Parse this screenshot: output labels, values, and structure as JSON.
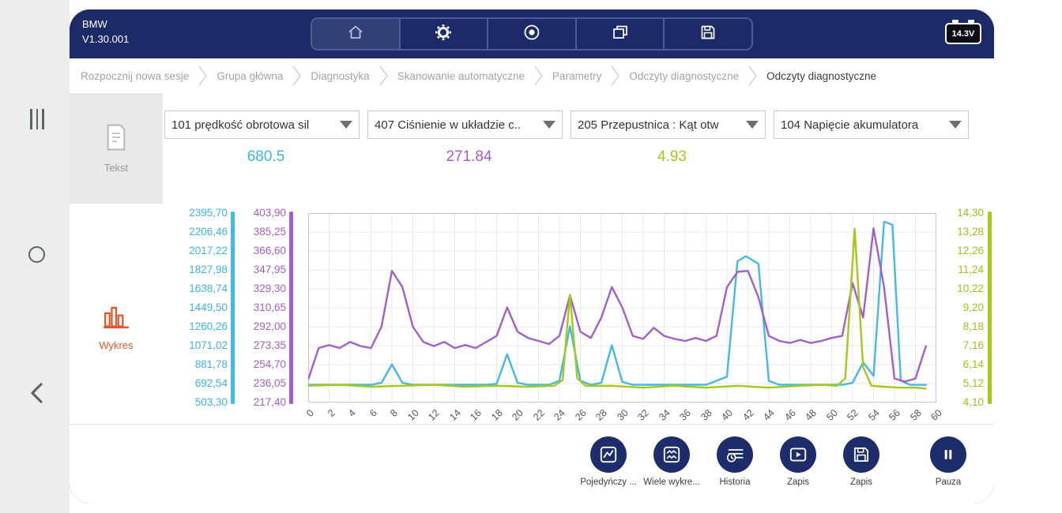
{
  "app": {
    "name": "BMW",
    "version": "V1.30.001"
  },
  "header": {
    "battery_voltage": "14.3V",
    "toolbar_icons": [
      "home-icon",
      "settings-gear-icon",
      "record-icon",
      "multi-window-icon",
      "save-icon"
    ]
  },
  "android_nav_icons": [
    "recents-icon",
    "home-circle-icon",
    "back-chevron-icon"
  ],
  "breadcrumbs": [
    "Rozpocznij nowa sesje",
    "Grupa główna",
    "Diagnostyka",
    "Skanowanie automatyczne",
    "Parametry",
    "Odczyty diagnostyczne",
    "Odczyty diagnostyczne"
  ],
  "view_tabs": {
    "text_label": "Tekst",
    "chart_label": "Wykres"
  },
  "selectors": [
    {
      "label": "101 prędkość obrotowa sil"
    },
    {
      "label": "407 Ciśnienie w układzie c.."
    },
    {
      "label": "205 Przepustnica : Kąt otw"
    },
    {
      "label": "104 Napięcie akumulatora"
    }
  ],
  "values": [
    {
      "text": "680.5",
      "color": "#3bb3e6"
    },
    {
      "text": "271.84",
      "color": "#a55cc6"
    },
    {
      "text": "4.93",
      "color": "#a3c61e"
    }
  ],
  "chart_data": {
    "type": "line",
    "x_max": 60,
    "grid_cols": 30,
    "grid_rows": 10,
    "x_tick_labels": [
      "0",
      "2",
      "4",
      "6",
      "8",
      "10",
      "12",
      "14",
      "16",
      "18",
      "20",
      "22",
      "24",
      "26",
      "28",
      "30",
      "32",
      "34",
      "36",
      "38",
      "40",
      "42",
      "44",
      "46",
      "48",
      "50",
      "52",
      "54",
      "56",
      "58",
      "60"
    ],
    "axes": {
      "left_rpm": {
        "color": "#3bb3e6",
        "min": 503.3,
        "max": 2395.7,
        "labels": [
          "2395,70",
          "2206,46",
          "2017,22",
          "1827,98",
          "1638,74",
          "1449,50",
          "1260,26",
          "1071,02",
          "881,78",
          "692,54",
          "503,30"
        ]
      },
      "left_pressure": {
        "color": "#a55cc6",
        "min": 217.4,
        "max": 403.9,
        "labels": [
          "403,90",
          "385,25",
          "366,60",
          "347,95",
          "329,30",
          "310,65",
          "292,00",
          "273,35",
          "254,70",
          "236,05",
          "217,40"
        ]
      },
      "right_voltage": {
        "color": "#a4c918",
        "min": 4.1,
        "max": 14.3,
        "labels": [
          "14,30",
          "13,28",
          "12,26",
          "11,24",
          "10,22",
          "9,20",
          "8,18",
          "7,16",
          "6,14",
          "5,12",
          "4,10"
        ]
      }
    },
    "series": [
      {
        "name": "101",
        "color": "#45b8e8",
        "axis_min": 503.3,
        "axis_max": 2395.7,
        "points": [
          [
            0,
            680
          ],
          [
            4,
            680
          ],
          [
            6,
            680
          ],
          [
            7,
            700
          ],
          [
            8,
            885
          ],
          [
            9,
            700
          ],
          [
            10,
            680
          ],
          [
            14,
            680
          ],
          [
            17,
            680
          ],
          [
            18,
            690
          ],
          [
            19,
            985
          ],
          [
            20,
            700
          ],
          [
            21,
            680
          ],
          [
            23,
            680
          ],
          [
            24,
            720
          ],
          [
            25,
            1265
          ],
          [
            26,
            720
          ],
          [
            27,
            680
          ],
          [
            28,
            700
          ],
          [
            29,
            1075
          ],
          [
            30,
            710
          ],
          [
            31,
            680
          ],
          [
            35,
            680
          ],
          [
            38,
            680
          ],
          [
            40,
            760
          ],
          [
            41,
            1915
          ],
          [
            41.8,
            1965
          ],
          [
            43,
            1890
          ],
          [
            44,
            720
          ],
          [
            45,
            680
          ],
          [
            48,
            680
          ],
          [
            51,
            680
          ],
          [
            52,
            700
          ],
          [
            53,
            905
          ],
          [
            54,
            770
          ],
          [
            55,
            2310
          ],
          [
            55.8,
            2280
          ],
          [
            56.6,
            720
          ],
          [
            57.5,
            680
          ],
          [
            59,
            680
          ]
        ]
      },
      {
        "name": "407",
        "color": "#a160c8",
        "axis_min": 217.4,
        "axis_max": 403.9,
        "points": [
          [
            0,
            240
          ],
          [
            1,
            271
          ],
          [
            2,
            274
          ],
          [
            3,
            271
          ],
          [
            4,
            277
          ],
          [
            5,
            273
          ],
          [
            6,
            271
          ],
          [
            7,
            292
          ],
          [
            8,
            347
          ],
          [
            9,
            331
          ],
          [
            10,
            292
          ],
          [
            11,
            277
          ],
          [
            12,
            273
          ],
          [
            13,
            277
          ],
          [
            14,
            271
          ],
          [
            15,
            274
          ],
          [
            16,
            271
          ],
          [
            17,
            277
          ],
          [
            18,
            283
          ],
          [
            19,
            311
          ],
          [
            20,
            287
          ],
          [
            21,
            281
          ],
          [
            22,
            278
          ],
          [
            23,
            275
          ],
          [
            24,
            283
          ],
          [
            25,
            323
          ],
          [
            26,
            287
          ],
          [
            27,
            281
          ],
          [
            28,
            301
          ],
          [
            29,
            331
          ],
          [
            30,
            311
          ],
          [
            31,
            283
          ],
          [
            32,
            280
          ],
          [
            33,
            291
          ],
          [
            34,
            283
          ],
          [
            35,
            280
          ],
          [
            36,
            278
          ],
          [
            37,
            281
          ],
          [
            38,
            278
          ],
          [
            39,
            283
          ],
          [
            40,
            331
          ],
          [
            41,
            346
          ],
          [
            42,
            347
          ],
          [
            43,
            321
          ],
          [
            44,
            283
          ],
          [
            45,
            278
          ],
          [
            46,
            276
          ],
          [
            47,
            279
          ],
          [
            48,
            276
          ],
          [
            49,
            278
          ],
          [
            50,
            281
          ],
          [
            51,
            283
          ],
          [
            52,
            335
          ],
          [
            53,
            301
          ],
          [
            54,
            389
          ],
          [
            55,
            331
          ],
          [
            56,
            241
          ],
          [
            57,
            238
          ],
          [
            58,
            241
          ],
          [
            59,
            273
          ]
        ]
      },
      {
        "name": "205/104",
        "color": "#a4c918",
        "axis_min": 4.1,
        "axis_max": 14.3,
        "points": [
          [
            0,
            5.0
          ],
          [
            3,
            5.05
          ],
          [
            6,
            4.95
          ],
          [
            9,
            5.0
          ],
          [
            12,
            5.05
          ],
          [
            15,
            4.95
          ],
          [
            18,
            5.0
          ],
          [
            21,
            4.95
          ],
          [
            23.5,
            5.0
          ],
          [
            24.3,
            5.3
          ],
          [
            25,
            9.9
          ],
          [
            25.7,
            5.4
          ],
          [
            26.5,
            5.0
          ],
          [
            29,
            5.0
          ],
          [
            32,
            4.9
          ],
          [
            35,
            5.0
          ],
          [
            38,
            4.9
          ],
          [
            41,
            5.0
          ],
          [
            44,
            4.9
          ],
          [
            47,
            5.0
          ],
          [
            49,
            5.05
          ],
          [
            50.5,
            5.0
          ],
          [
            51.3,
            5.4
          ],
          [
            52.2,
            13.45
          ],
          [
            53,
            6.0
          ],
          [
            53.8,
            5.0
          ],
          [
            55,
            4.95
          ],
          [
            56.5,
            4.9
          ],
          [
            58,
            4.9
          ],
          [
            59,
            4.85
          ]
        ]
      }
    ]
  },
  "bottom_toolbar": {
    "buttons": [
      {
        "label": "Pojedyńczy ...",
        "icon": "single-chart-icon"
      },
      {
        "label": "Wiele wykre...",
        "icon": "multi-chart-icon"
      },
      {
        "label": "Historia",
        "icon": "history-icon"
      },
      {
        "label": "Zapis",
        "icon": "record-video-icon"
      },
      {
        "label": "Zapis",
        "icon": "save-icon"
      },
      {
        "label": "Pauza",
        "icon": "pause-icon"
      }
    ]
  }
}
